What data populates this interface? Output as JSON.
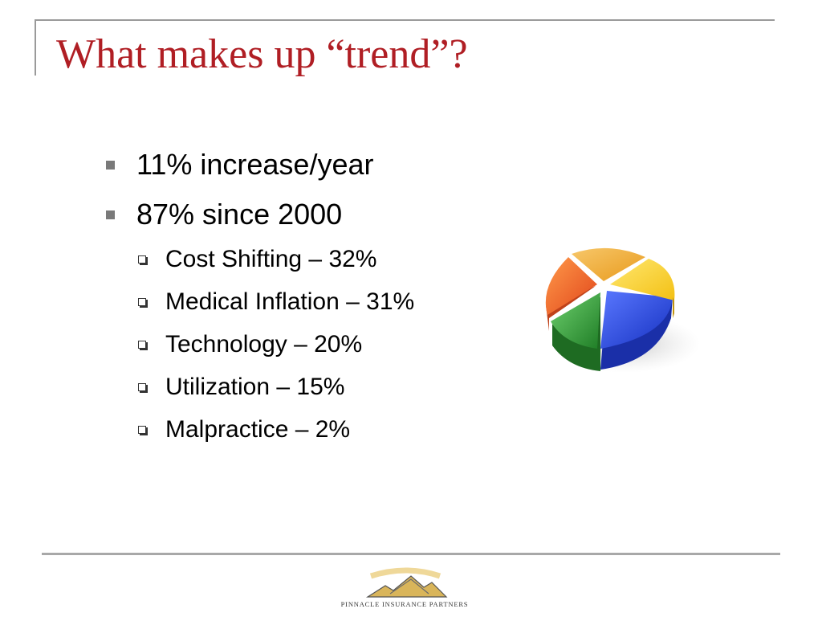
{
  "title": "What makes up “trend”?",
  "bullets": [
    {
      "text": "11% increase/year",
      "level": 1
    },
    {
      "text": "87% since 2000",
      "level": 1
    },
    {
      "text": "Cost Shifting – 32%",
      "level": 2
    },
    {
      "text": "Medical Inflation – 31%",
      "level": 2
    },
    {
      "text": "Technology – 20%",
      "level": 2
    },
    {
      "text": "Utilization – 15%",
      "level": 2
    },
    {
      "text": "Malpractice – 2%",
      "level": 2
    }
  ],
  "pie_colors": [
    "#f2b63a",
    "#ffd21f",
    "#1f3fd6",
    "#2e9a35",
    "#f06a1c"
  ],
  "logo": {
    "name": "PINNACLE INSURANCE PARTNERS"
  }
}
